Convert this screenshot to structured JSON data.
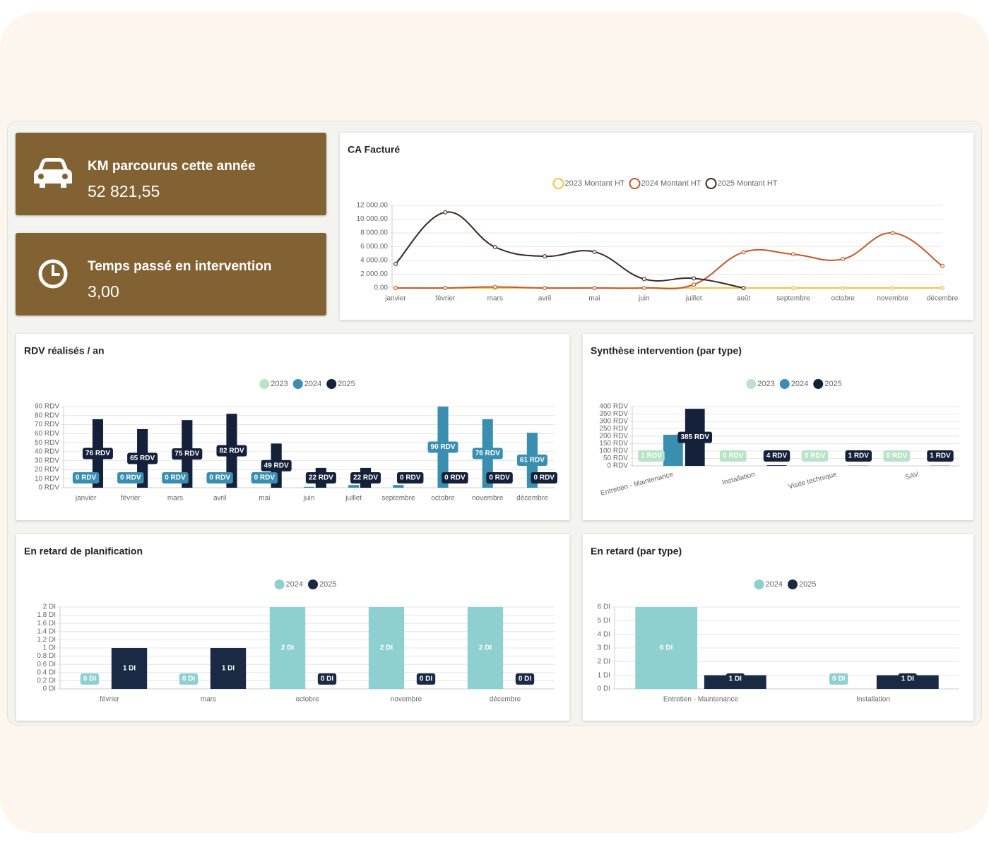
{
  "cards": [
    {
      "title": "KM parcourus cette année",
      "value": "52 821,55"
    },
    {
      "title": "Temps passé en intervention",
      "value": "3,00"
    }
  ],
  "chart_data": [
    {
      "type": "line",
      "title": "CA Facturé",
      "categories": [
        "janvier",
        "février",
        "mars",
        "avril",
        "mai",
        "juin",
        "juillet",
        "août",
        "septembre",
        "octobre",
        "novembre",
        "décembre"
      ],
      "series": [
        {
          "name": "2023 Montant HT",
          "color": "#f5c242",
          "values": [
            0,
            0,
            0,
            0,
            0,
            0,
            0,
            0,
            0,
            0,
            0,
            0
          ]
        },
        {
          "name": "2024 Montant HT",
          "color": "#c0582a",
          "values": [
            0,
            0,
            150,
            0,
            0,
            0,
            500,
            5200,
            4900,
            4200,
            8000,
            3200
          ]
        },
        {
          "name": "2025 Montant HT",
          "color": "#3a2626",
          "values": [
            3500,
            11000,
            5950,
            4600,
            5250,
            1300,
            1400,
            0,
            null,
            null,
            null,
            null
          ]
        }
      ],
      "ylim": [
        0,
        12000
      ],
      "yticks": [
        {
          "value": 0,
          "label": "0,00"
        },
        {
          "value": 2000,
          "label": "2 000,00"
        },
        {
          "value": 4000,
          "label": "4 000,00"
        },
        {
          "value": 6000,
          "label": "6 000,00"
        },
        {
          "value": 8000,
          "label": "8 000,00"
        },
        {
          "value": 10000,
          "label": "10 000,00"
        },
        {
          "value": 12000,
          "label": "12 000,00"
        }
      ],
      "grid": true,
      "legend": "top"
    },
    {
      "type": "bar",
      "title": "RDV réalisés / an",
      "categories": [
        "janvier",
        "février",
        "mars",
        "avril",
        "mai",
        "juin",
        "juillet",
        "septembre",
        "octobre",
        "novembre",
        "décembre"
      ],
      "series": [
        {
          "name": "2023",
          "color": "#b9e3c6",
          "values": [
            0,
            0,
            0,
            0,
            0,
            0,
            0,
            0,
            0,
            0,
            0
          ]
        },
        {
          "name": "2024",
          "color": "#3a8fb0",
          "values": [
            0,
            0,
            0,
            0,
            0,
            1,
            3,
            3,
            90,
            76,
            61
          ],
          "value_labels": [
            "0 RDV",
            "0 RDV",
            "0 RDV",
            "0 RDV",
            "0 RDV",
            null,
            null,
            null,
            "90 RDV",
            "76 RDV",
            "61 RDV"
          ]
        },
        {
          "name": "2025",
          "color": "#15203a",
          "values": [
            76,
            65,
            75,
            82,
            49,
            22,
            22,
            0,
            0,
            0,
            0
          ],
          "value_labels": [
            "76 RDV",
            "65 RDV",
            "75 RDV",
            "82 RDV",
            "49 RDV",
            "22 RDV",
            "22 RDV",
            "0 RDV",
            "0 RDV",
            "0 RDV",
            "0 RDV"
          ]
        }
      ],
      "ylim": [
        0,
        90
      ],
      "yticks": [
        {
          "value": 0,
          "label": "0 RDV"
        },
        {
          "value": 10,
          "label": "10 RDV"
        },
        {
          "value": 20,
          "label": "20 RDV"
        },
        {
          "value": 30,
          "label": "30 RDV"
        },
        {
          "value": 40,
          "label": "40 RDV"
        },
        {
          "value": 50,
          "label": "50 RDV"
        },
        {
          "value": 60,
          "label": "60 RDV"
        },
        {
          "value": 70,
          "label": "70 RDV"
        },
        {
          "value": 80,
          "label": "80 RDV"
        },
        {
          "value": 90,
          "label": "90 RDV"
        }
      ],
      "grid": true,
      "legend": "top"
    },
    {
      "type": "bar",
      "title": "Synthèse intervention (par type)",
      "categories": [
        "Entretien - Maintenance",
        "Installation",
        "Visite technique",
        "SAV"
      ],
      "series": [
        {
          "name": "2023",
          "color": "#b9e3c6",
          "values": [
            1,
            0,
            0,
            0
          ],
          "value_labels": [
            "1 RDV",
            "0 RDV",
            "0 RDV",
            "0 RDV"
          ]
        },
        {
          "name": "2024",
          "color": "#3a8fb0",
          "values": [
            210,
            0,
            0,
            0
          ]
        },
        {
          "name": "2025",
          "color": "#15203a",
          "values": [
            385,
            4,
            1,
            1
          ],
          "value_labels": [
            "385 RDV",
            "4 RDV",
            "1 RDV",
            "1 RDV"
          ]
        }
      ],
      "ylim": [
        0,
        400
      ],
      "yticks": [
        {
          "value": 0,
          "label": "0 RDV"
        },
        {
          "value": 50,
          "label": "50 RDV"
        },
        {
          "value": 100,
          "label": "100 RDV"
        },
        {
          "value": 150,
          "label": "150 RDV"
        },
        {
          "value": 200,
          "label": "200 RDV"
        },
        {
          "value": 250,
          "label": "250 RDV"
        },
        {
          "value": 300,
          "label": "300 RDV"
        },
        {
          "value": 350,
          "label": "350 RDV"
        },
        {
          "value": 400,
          "label": "400 RDV"
        }
      ],
      "grid": true,
      "legend": "top"
    },
    {
      "type": "bar",
      "title": "En retard de planification",
      "categories": [
        "février",
        "mars",
        "octobre",
        "novembre",
        "décembre"
      ],
      "series": [
        {
          "name": "2024",
          "color": "#8ecfcf",
          "values": [
            0,
            0,
            2,
            2,
            2
          ],
          "value_labels": [
            "0 DI",
            "0 DI",
            "2 DI",
            "2 DI",
            "2 DI"
          ]
        },
        {
          "name": "2025",
          "color": "#1b2a44",
          "values": [
            1,
            1,
            0,
            0,
            0
          ],
          "value_labels": [
            "1 DI",
            "1 DI",
            "0 DI",
            "0 DI",
            "0 DI"
          ]
        }
      ],
      "ylim": [
        0,
        2
      ],
      "yticks": [
        {
          "value": 0,
          "label": "0 DI"
        },
        {
          "value": 0.2,
          "label": "0.2 DI"
        },
        {
          "value": 0.4,
          "label": "0.4 DI"
        },
        {
          "value": 0.6,
          "label": "0.6 DI"
        },
        {
          "value": 0.8,
          "label": "0.8 DI"
        },
        {
          "value": 1,
          "label": "1 DI"
        },
        {
          "value": 1.2,
          "label": "1.2 DI"
        },
        {
          "value": 1.4,
          "label": "1.4 DI"
        },
        {
          "value": 1.6,
          "label": "1.6 DI"
        },
        {
          "value": 1.8,
          "label": "1.8 DI"
        },
        {
          "value": 2,
          "label": "2 DI"
        }
      ],
      "grid": true,
      "legend": "top"
    },
    {
      "type": "bar",
      "title": "En retard (par type)",
      "categories": [
        "Entretien - Maintenance",
        "Installation"
      ],
      "series": [
        {
          "name": "2024",
          "color": "#8ecfcf",
          "values": [
            6,
            0
          ],
          "value_labels": [
            "6 DI",
            "0 DI"
          ]
        },
        {
          "name": "2025",
          "color": "#1b2a44",
          "values": [
            1,
            1
          ],
          "value_labels": [
            "1 DI",
            "1 DI"
          ]
        }
      ],
      "ylim": [
        0,
        6
      ],
      "yticks": [
        {
          "value": 0,
          "label": "0 DI"
        },
        {
          "value": 1,
          "label": "1 DI"
        },
        {
          "value": 2,
          "label": "2 DI"
        },
        {
          "value": 3,
          "label": "3 DI"
        },
        {
          "value": 4,
          "label": "4 DI"
        },
        {
          "value": 5,
          "label": "5 DI"
        },
        {
          "value": 6,
          "label": "6 DI"
        }
      ],
      "grid": true,
      "legend": "top"
    }
  ]
}
